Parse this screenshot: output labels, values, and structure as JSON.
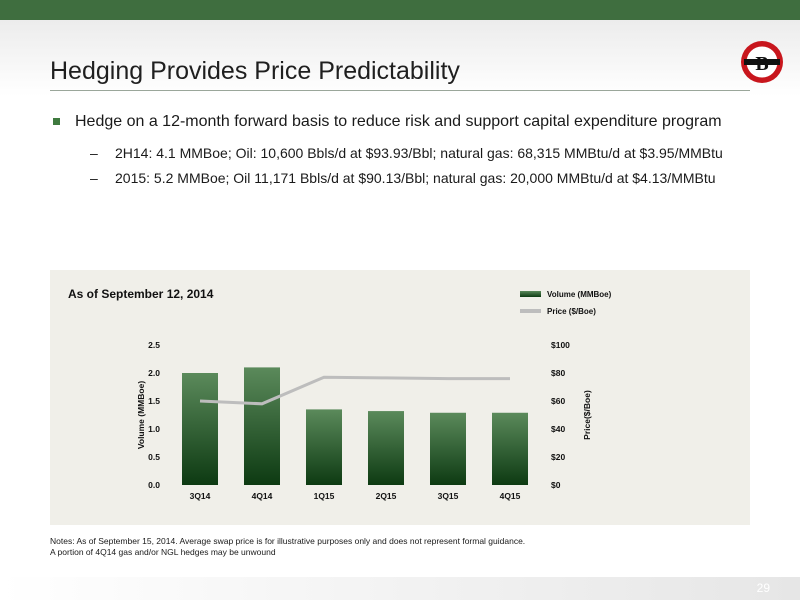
{
  "slide": {
    "title": "Hedging Provides Price Predictability",
    "page_number": "29"
  },
  "colors": {
    "top_bar": "#3f6e3f",
    "bar_dark": "#0d3a12",
    "bar_light": "#5b8a5b",
    "price_line": "#bdbdbd",
    "panel_bg": "#f0efe9",
    "logo_red": "#c8161d"
  },
  "logo": {
    "letter": "B"
  },
  "content": {
    "bullet": "Hedge on a 12-month forward basis to reduce risk and support capital expenditure program",
    "sub_bullets": [
      "2H14: 4.1 MMBoe;  Oil: 10,600 Bbls/d at $93.93/Bbl; natural gas: 68,315 MMBtu/d at $3.95/MMBtu",
      "2015: 5.2 MMBoe; Oil 11,171 Bbls/d at $90.13/Bbl; natural gas: 20,000 MMBtu/d at $4.13/MMBtu"
    ],
    "dash": "–"
  },
  "chart_data": {
    "type": "bar",
    "title": "As of September 12, 2014",
    "categories": [
      "3Q14",
      "4Q14",
      "1Q15",
      "2Q15",
      "3Q15",
      "4Q15"
    ],
    "series": [
      {
        "name": "Volume (MMBoe)",
        "type": "bar",
        "axis": "left",
        "values": [
          2.0,
          2.1,
          1.35,
          1.32,
          1.29,
          1.29
        ]
      },
      {
        "name": "Price ($/Boe)",
        "type": "line",
        "axis": "right",
        "values": [
          60,
          58,
          77,
          76.5,
          76,
          76
        ]
      }
    ],
    "ylabel": "Volume (MMBoe)",
    "ylabel_right": "Price($/Boe)",
    "ylim": [
      0,
      2.5
    ],
    "ylim_right": [
      0,
      100
    ],
    "yticks": [
      "0.0",
      "0.5",
      "1.0",
      "1.5",
      "2.0",
      "2.5"
    ],
    "yticks_right": [
      "$0",
      "$20",
      "$40",
      "$60",
      "$80",
      "$100"
    ],
    "legend": "top-right",
    "grid": false
  },
  "notes": [
    "Notes: As of September 15, 2014. Average swap price is for illustrative purposes only and does not represent formal guidance.",
    "A portion of 4Q14 gas and/or NGL hedges may be unwound"
  ]
}
